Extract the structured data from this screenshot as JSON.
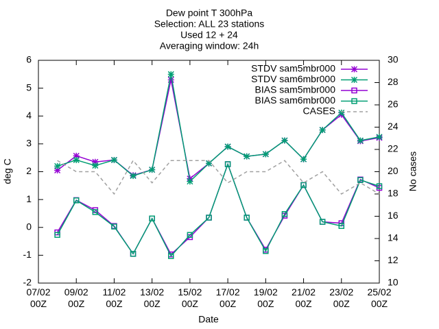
{
  "chart_data": {
    "type": "line",
    "title": [
      "Dew point T 300hPa",
      "Selection: ALL     23 stations",
      "Used 12 + 24",
      "Averaging window: 24h"
    ],
    "x_label": "Date",
    "y_label": "deg C",
    "y2_label": "No cases",
    "x": [
      "08/02 00Z",
      "09/02 00Z",
      "10/02 00Z",
      "11/02 00Z",
      "12/02 00Z",
      "13/02 00Z",
      "14/02 00Z",
      "15/02 00Z",
      "16/02 00Z",
      "17/02 00Z",
      "18/02 00Z",
      "19/02 00Z",
      "20/02 00Z",
      "21/02 00Z",
      "22/02 00Z",
      "23/02 00Z",
      "24/02 00Z",
      "25/02 00Z"
    ],
    "xlim": [
      "07/02 00Z",
      "25/02 00Z"
    ],
    "xticks": [
      "07/02 00Z",
      "09/02 00Z",
      "11/02 00Z",
      "13/02 00Z",
      "15/02 00Z",
      "17/02 00Z",
      "19/02 00Z",
      "21/02 00Z",
      "23/02 00Z",
      "25/02 00Z"
    ],
    "ylim": [
      -2,
      6
    ],
    "yticks": [
      -2,
      -1,
      0,
      1,
      2,
      3,
      4,
      5,
      6
    ],
    "y2lim": [
      10,
      30
    ],
    "y2ticks": [
      10,
      12,
      14,
      16,
      18,
      20,
      22,
      24,
      26,
      28,
      30
    ],
    "grid": false,
    "legend": "top-right",
    "series": [
      {
        "name": "STDV sam5mbr000",
        "color": "#9400d3",
        "marker": "star",
        "values": [
          2.05,
          2.57,
          2.35,
          2.42,
          1.87,
          2.07,
          5.3,
          1.75,
          2.3,
          2.9,
          2.55,
          2.63,
          3.12,
          2.45,
          3.5,
          4.05,
          3.1,
          3.22
        ]
      },
      {
        "name": "STDV sam6mbr000",
        "color": "#009e73",
        "marker": "star",
        "values": [
          2.2,
          2.42,
          2.22,
          2.42,
          1.85,
          2.07,
          5.5,
          1.65,
          2.3,
          2.9,
          2.55,
          2.63,
          3.12,
          2.45,
          3.5,
          4.12,
          3.12,
          3.25
        ]
      },
      {
        "name": "BIAS sam5mbr000",
        "color": "#9400d3",
        "marker": "box",
        "values": [
          -0.18,
          0.98,
          0.62,
          0.05,
          -0.95,
          0.32,
          -0.97,
          -0.35,
          0.35,
          2.27,
          0.35,
          -0.8,
          0.42,
          1.52,
          0.2,
          0.15,
          1.72,
          1.42
        ]
      },
      {
        "name": "BIAS sam6mbr000",
        "color": "#009e73",
        "marker": "box",
        "values": [
          -0.27,
          0.97,
          0.55,
          0.03,
          -0.95,
          0.32,
          -1.03,
          -0.27,
          0.35,
          2.27,
          0.35,
          -0.85,
          0.48,
          1.52,
          0.2,
          0.05,
          1.7,
          1.48
        ]
      },
      {
        "name": "CASES",
        "color": "#a0a0a0",
        "dashed": true,
        "axis": "y2",
        "values": [
          21,
          20,
          20,
          18,
          21,
          19,
          21,
          21,
          21,
          19,
          20,
          20,
          21,
          19,
          20,
          18,
          19,
          18
        ]
      }
    ]
  }
}
